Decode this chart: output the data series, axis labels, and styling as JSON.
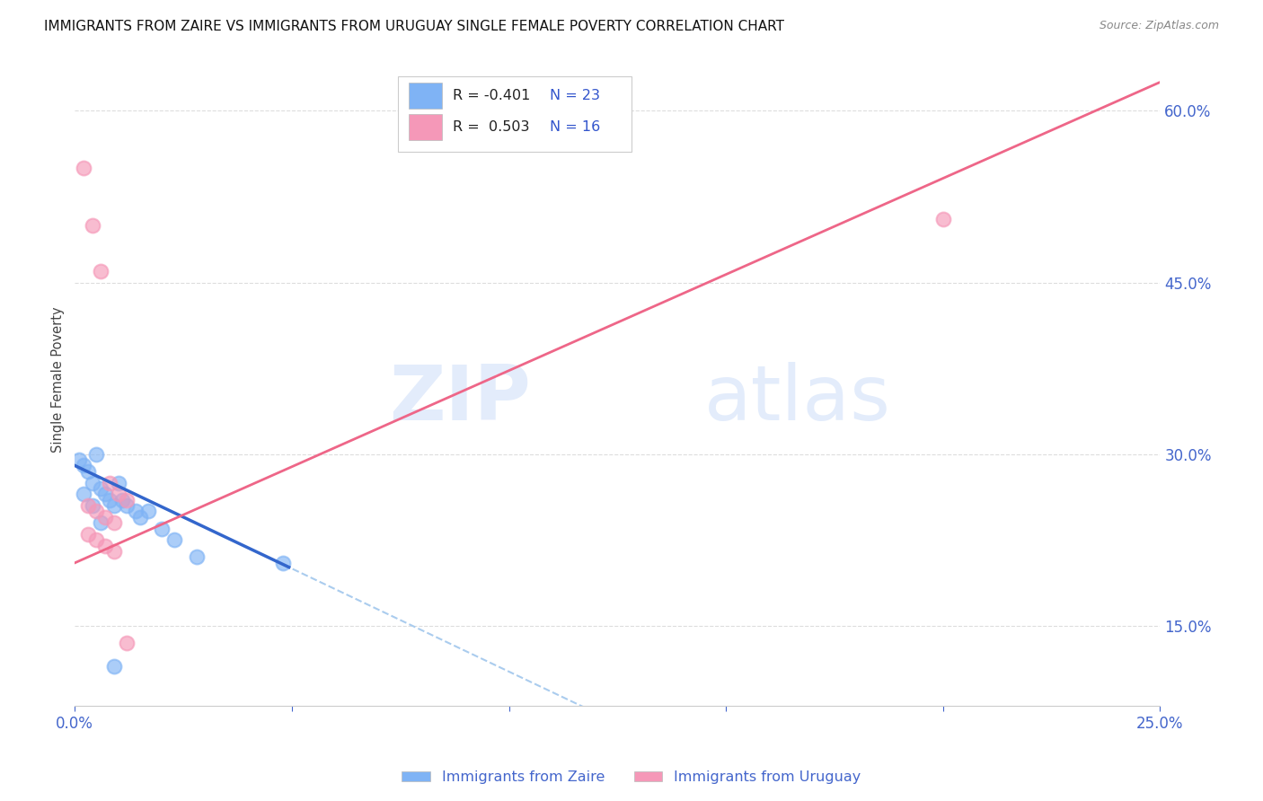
{
  "title": "IMMIGRANTS FROM ZAIRE VS IMMIGRANTS FROM URUGUAY SINGLE FEMALE POVERTY CORRELATION CHART",
  "source": "Source: ZipAtlas.com",
  "ylabel": "Single Female Poverty",
  "zaire_x": [
    0.1,
    0.2,
    0.3,
    0.4,
    0.5,
    0.6,
    0.7,
    0.8,
    0.9,
    1.0,
    1.1,
    1.2,
    1.4,
    1.5,
    1.7,
    2.0,
    2.3,
    2.8,
    0.2,
    0.4,
    0.6,
    0.9,
    4.8
  ],
  "zaire_y": [
    29.5,
    29.0,
    28.5,
    27.5,
    30.0,
    27.0,
    26.5,
    26.0,
    25.5,
    27.5,
    26.0,
    25.5,
    25.0,
    24.5,
    25.0,
    23.5,
    22.5,
    21.0,
    26.5,
    25.5,
    24.0,
    11.5,
    20.5
  ],
  "uruguay_x": [
    0.2,
    0.4,
    0.6,
    0.8,
    1.0,
    1.2,
    0.3,
    0.5,
    0.7,
    0.9,
    0.3,
    0.5,
    0.7,
    0.9,
    1.2,
    20.0
  ],
  "uruguay_y": [
    55.0,
    50.0,
    46.0,
    27.5,
    26.5,
    26.0,
    25.5,
    25.0,
    24.5,
    24.0,
    23.0,
    22.5,
    22.0,
    21.5,
    13.5,
    50.5
  ],
  "zaire_color": "#7fb3f5",
  "uruguay_color": "#f598b8",
  "zaire_line_color": "#3366cc",
  "uruguay_line_color": "#ee6688",
  "dashed_color": "#aaccee",
  "watermark_zip": "ZIP",
  "watermark_atlas": "atlas",
  "xlim": [
    0.0,
    0.25
  ],
  "ylim": [
    0.08,
    0.65
  ],
  "x_ticks": [
    0.0,
    0.05,
    0.1,
    0.15,
    0.2,
    0.25
  ],
  "y_ticks_right": [
    0.15,
    0.3,
    0.45,
    0.6
  ],
  "background_color": "#ffffff",
  "grid_color": "#dddddd",
  "axis_color": "#4466cc",
  "title_fontsize": 11,
  "legend_r1": "R = -0.401",
  "legend_n1": "N = 23",
  "legend_r2": "R =  0.503",
  "legend_n2": "N = 16",
  "zaire_label": "Immigrants from Zaire",
  "uruguay_label": "Immigrants from Uruguay"
}
